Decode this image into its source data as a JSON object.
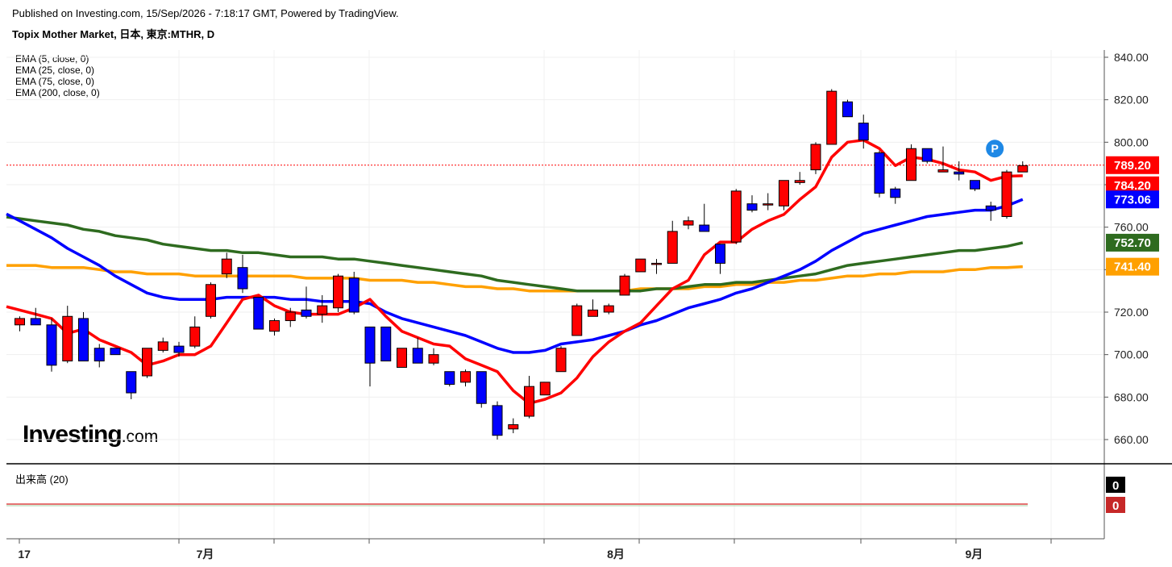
{
  "header": {
    "published": "Published on Investing.com, 15/Sep/2026 - 7:18:17 GMT, Powered by TradingView.",
    "title": "Topix Mother Market, 日本, 東京:MTHR, D"
  },
  "legend": [
    "EMA (5, close, 0)",
    "EMA (25, close, 0)",
    "EMA (75, close, 0)",
    "EMA (200, close, 0)"
  ],
  "volume_panel": {
    "title": "出来高 (20)",
    "badges": [
      {
        "text": "0",
        "color": "#000000"
      },
      {
        "text": "0",
        "color": "#c62828"
      }
    ]
  },
  "logo": {
    "brand": "Investing",
    "suffix": ".com"
  },
  "marker": {
    "label": "P",
    "color": "#1e88e5"
  },
  "colors": {
    "up": "#ff0000",
    "down": "#0000ff",
    "ema5": "#ff0000",
    "ema25": "#0000ff",
    "ema75": "#2e6b1f",
    "ema200": "#ffa000"
  },
  "chart_data": {
    "type": "candlestick",
    "title": "Topix Mother Market, 日本, 東京:MTHR, D",
    "y_ticks": [
      660,
      680,
      700,
      720,
      740,
      760,
      780,
      800,
      820,
      840
    ],
    "y_tick_labels": [
      "660.00",
      "680.00",
      "700.00",
      "720.00",
      "740.00",
      "760.00",
      "780.00",
      "800.00",
      "820.00",
      "840.00"
    ],
    "ylim": [
      649,
      843
    ],
    "x_tick_labels": [
      {
        "label": "17",
        "index": 0.5
      },
      {
        "label": "7月",
        "index": 11.7
      },
      {
        "label": "8月",
        "index": 37.5
      },
      {
        "label": "9月",
        "index": 60.0
      }
    ],
    "candles": [
      {
        "o": 714,
        "h": 718,
        "l": 711,
        "c": 717
      },
      {
        "o": 717,
        "h": 722,
        "l": 714,
        "c": 714
      },
      {
        "o": 714,
        "h": 717,
        "l": 692,
        "c": 695
      },
      {
        "o": 697,
        "h": 723,
        "l": 696,
        "c": 718
      },
      {
        "o": 717,
        "h": 720,
        "l": 697,
        "c": 697
      },
      {
        "o": 703,
        "h": 705,
        "l": 694,
        "c": 697
      },
      {
        "o": 703,
        "h": 703,
        "l": 700,
        "c": 700
      },
      {
        "o": 692,
        "h": 692,
        "l": 679,
        "c": 682
      },
      {
        "o": 690,
        "h": 703,
        "l": 689,
        "c": 703
      },
      {
        "o": 702,
        "h": 708,
        "l": 701,
        "c": 706
      },
      {
        "o": 704,
        "h": 706,
        "l": 699,
        "c": 701
      },
      {
        "o": 704,
        "h": 718,
        "l": 703,
        "c": 713
      },
      {
        "o": 718,
        "h": 734,
        "l": 717,
        "c": 733
      },
      {
        "o": 738,
        "h": 748,
        "l": 736,
        "c": 745
      },
      {
        "o": 741,
        "h": 747,
        "l": 729,
        "c": 731
      },
      {
        "o": 727,
        "h": 727,
        "l": 712,
        "c": 712
      },
      {
        "o": 711,
        "h": 717,
        "l": 709,
        "c": 716
      },
      {
        "o": 716,
        "h": 722,
        "l": 713,
        "c": 720
      },
      {
        "o": 721,
        "h": 732,
        "l": 717,
        "c": 718
      },
      {
        "o": 719,
        "h": 728,
        "l": 715,
        "c": 723
      },
      {
        "o": 722,
        "h": 738,
        "l": 720,
        "c": 737
      },
      {
        "o": 736,
        "h": 739,
        "l": 719,
        "c": 720
      },
      {
        "o": 713,
        "h": 713,
        "l": 685,
        "c": 696
      },
      {
        "o": 713,
        "h": 713,
        "l": 697,
        "c": 697
      },
      {
        "o": 694,
        "h": 703,
        "l": 694,
        "c": 703
      },
      {
        "o": 703,
        "h": 708,
        "l": 696,
        "c": 696
      },
      {
        "o": 696,
        "h": 703,
        "l": 695,
        "c": 700
      },
      {
        "o": 692,
        "h": 692,
        "l": 685,
        "c": 686
      },
      {
        "o": 687,
        "h": 693,
        "l": 685,
        "c": 692
      },
      {
        "o": 692,
        "h": 692,
        "l": 675,
        "c": 677
      },
      {
        "o": 676,
        "h": 678,
        "l": 660,
        "c": 662
      },
      {
        "o": 665,
        "h": 670,
        "l": 663,
        "c": 667
      },
      {
        "o": 671,
        "h": 690,
        "l": 670,
        "c": 685
      },
      {
        "o": 681,
        "h": 687,
        "l": 681,
        "c": 687
      },
      {
        "o": 692,
        "h": 704,
        "l": 692,
        "c": 703
      },
      {
        "o": 709,
        "h": 724,
        "l": 709,
        "c": 723
      },
      {
        "o": 718,
        "h": 726,
        "l": 718,
        "c": 721
      },
      {
        "o": 720,
        "h": 724,
        "l": 719,
        "c": 723
      },
      {
        "o": 728,
        "h": 738,
        "l": 728,
        "c": 737
      },
      {
        "o": 739,
        "h": 745,
        "l": 739,
        "c": 745
      },
      {
        "o": 743,
        "h": 745,
        "l": 738,
        "c": 743
      },
      {
        "o": 743,
        "h": 763,
        "l": 743,
        "c": 758
      },
      {
        "o": 761,
        "h": 765,
        "l": 759,
        "c": 763
      },
      {
        "o": 761,
        "h": 771,
        "l": 758,
        "c": 758
      },
      {
        "o": 752,
        "h": 752,
        "l": 738,
        "c": 743
      },
      {
        "o": 753,
        "h": 778,
        "l": 752,
        "c": 777
      },
      {
        "o": 771,
        "h": 775,
        "l": 767,
        "c": 768
      },
      {
        "o": 771,
        "h": 776,
        "l": 768,
        "c": 771
      },
      {
        "o": 770,
        "h": 782,
        "l": 768,
        "c": 782
      },
      {
        "o": 781,
        "h": 786,
        "l": 780,
        "c": 782
      },
      {
        "o": 787,
        "h": 800,
        "l": 785,
        "c": 799
      },
      {
        "o": 799,
        "h": 825,
        "l": 799,
        "c": 824
      },
      {
        "o": 819,
        "h": 820,
        "l": 812,
        "c": 812
      },
      {
        "o": 809,
        "h": 813,
        "l": 797,
        "c": 801
      },
      {
        "o": 795,
        "h": 796,
        "l": 774,
        "c": 776
      },
      {
        "o": 778,
        "h": 779,
        "l": 771,
        "c": 774
      },
      {
        "o": 782,
        "h": 799,
        "l": 782,
        "c": 797
      },
      {
        "o": 797,
        "h": 797,
        "l": 790,
        "c": 791
      },
      {
        "o": 786,
        "h": 798,
        "l": 786,
        "c": 787
      },
      {
        "o": 786,
        "h": 791,
        "l": 782,
        "c": 785
      },
      {
        "o": 782,
        "h": 782,
        "l": 777,
        "c": 778
      },
      {
        "o": 770,
        "h": 772,
        "l": 763,
        "c": 768
      },
      {
        "o": 765,
        "h": 787,
        "l": 764,
        "c": 786
      },
      {
        "o": 786,
        "h": 791,
        "l": 786,
        "c": 789
      }
    ],
    "ema_lines": [
      {
        "name": "EMA (5, close, 0)",
        "color": "#ff0000",
        "last": 784.2,
        "values": [
          721,
          719,
          717,
          710,
          712,
          707,
          704,
          701,
          695,
          697,
          700,
          700,
          704,
          715,
          726,
          728,
          723,
          720,
          719,
          719,
          719,
          722,
          726,
          718,
          711,
          708,
          705,
          704,
          698,
          695,
          692,
          683,
          677,
          679,
          682,
          689,
          699,
          706,
          711,
          715,
          723,
          731,
          735,
          747,
          753,
          753,
          759,
          763,
          766,
          773,
          779,
          793,
          800,
          801,
          797,
          789,
          793,
          792,
          790,
          787,
          786,
          782,
          784,
          784.2
        ]
      },
      {
        "name": "EMA (25, close, 0)",
        "color": "#0000ff",
        "last": 773.06,
        "values": [
          763,
          759,
          755,
          750,
          746,
          742,
          737,
          733,
          729,
          727,
          726,
          726,
          726,
          727,
          727,
          727,
          727,
          726,
          726,
          725,
          725,
          725,
          724,
          720,
          717,
          715,
          713,
          711,
          709,
          706,
          703,
          701,
          701,
          702,
          705,
          706,
          707,
          709,
          711,
          714,
          716,
          719,
          722,
          724,
          726,
          729,
          731,
          734,
          737,
          740,
          744,
          749,
          753,
          757,
          759,
          761,
          763,
          765,
          766,
          767,
          768,
          768,
          770,
          773.06
        ]
      },
      {
        "name": "EMA (75, close, 0)",
        "color": "#2e6b1f",
        "last": 752.7,
        "values": [
          764,
          763,
          762,
          761,
          759,
          758,
          756,
          755,
          754,
          752,
          751,
          750,
          749,
          749,
          748,
          748,
          747,
          746,
          746,
          746,
          745,
          745,
          744,
          743,
          742,
          741,
          740,
          739,
          738,
          737,
          735,
          734,
          733,
          732,
          731,
          730,
          730,
          730,
          730,
          730,
          731,
          731,
          732,
          733,
          733,
          734,
          734,
          735,
          736,
          737,
          738,
          740,
          742,
          743,
          744,
          745,
          746,
          747,
          748,
          749,
          749,
          750,
          751,
          752.7
        ]
      },
      {
        "name": "EMA (200, close, 0)",
        "color": "#ffa000",
        "last": 741.4,
        "values": [
          742,
          742,
          741,
          741,
          741,
          740,
          739,
          739,
          738,
          738,
          738,
          737,
          737,
          737,
          737,
          737,
          737,
          737,
          736,
          736,
          736,
          736,
          735,
          735,
          735,
          734,
          734,
          733,
          732,
          732,
          731,
          731,
          730,
          730,
          730,
          730,
          730,
          730,
          730,
          731,
          731,
          731,
          731,
          732,
          732,
          733,
          733,
          734,
          734,
          735,
          735,
          736,
          737,
          737,
          738,
          738,
          739,
          739,
          739,
          740,
          740,
          741,
          741,
          741.4
        ]
      }
    ],
    "last_close": 789.2,
    "price_badges": [
      {
        "text": "789.20",
        "color": "#ff0000"
      },
      {
        "text": "784.20",
        "color": "#ff0000"
      },
      {
        "text": "773.06",
        "color": "#0000ff"
      },
      {
        "text": "752.70",
        "color": "#2e6b1f"
      },
      {
        "text": "741.40",
        "color": "#ffa000"
      }
    ]
  }
}
